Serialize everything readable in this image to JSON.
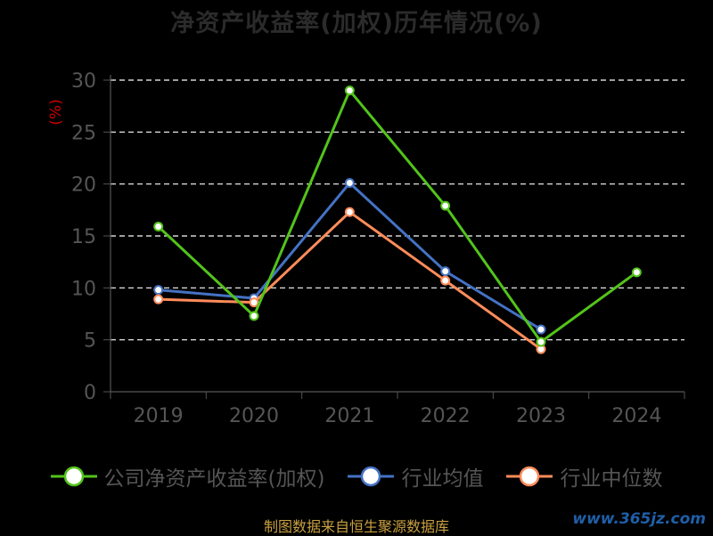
{
  "chart_data": {
    "type": "line",
    "title": "净资产收益率(加权)历年情况(%)",
    "ylabel": "(%)",
    "categories": [
      "2019",
      "2020",
      "2021",
      "2022",
      "2023",
      "2024"
    ],
    "ylim": [
      0,
      30
    ],
    "yticks": [
      0,
      5,
      10,
      15,
      20,
      25,
      30
    ],
    "grid": true,
    "legend_position": "bottom",
    "series": [
      {
        "name": "公司净资产收益率(加权)",
        "color": "#52c41a",
        "values": [
          15.9,
          7.3,
          29.0,
          17.9,
          4.8,
          11.5
        ]
      },
      {
        "name": "行业均值",
        "color": "#4472c4",
        "values": [
          9.8,
          9.0,
          20.1,
          11.6,
          6.0,
          null
        ]
      },
      {
        "name": "行业中位数",
        "color": "#ff8c5a",
        "values": [
          8.9,
          8.6,
          17.3,
          10.7,
          4.1,
          null
        ]
      }
    ]
  },
  "footer": {
    "source": "制图数据来自恒生聚源数据库"
  },
  "watermark": "www.365jz.com",
  "colors": {
    "background": "#000000",
    "grid": "#ffffff",
    "axis": "#555555",
    "ylabel": "#cc0000"
  }
}
